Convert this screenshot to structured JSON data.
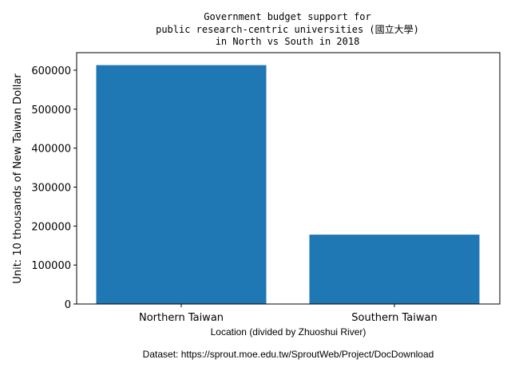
{
  "chart_data": {
    "type": "bar",
    "title_lines": [
      "Government budget support for",
      "public research-centric universities (國立大學)",
      "in North vs South in 2018"
    ],
    "categories": [
      "Northern Taiwan",
      "Southern Taiwan"
    ],
    "values": [
      613000,
      178000
    ],
    "ylabel": "Unit: 10 thousands of New Taiwan Dollar",
    "xlabel": "Location (divided by Zhuoshui River)",
    "yticks": [
      0,
      100000,
      200000,
      300000,
      400000,
      500000,
      600000
    ],
    "ylim": [
      0,
      645000
    ],
    "grid": false,
    "bar_color": "#1f77b4"
  },
  "footnote": "Dataset: https://sprout.moe.edu.tw/SproutWeb/Project/DocDownload"
}
